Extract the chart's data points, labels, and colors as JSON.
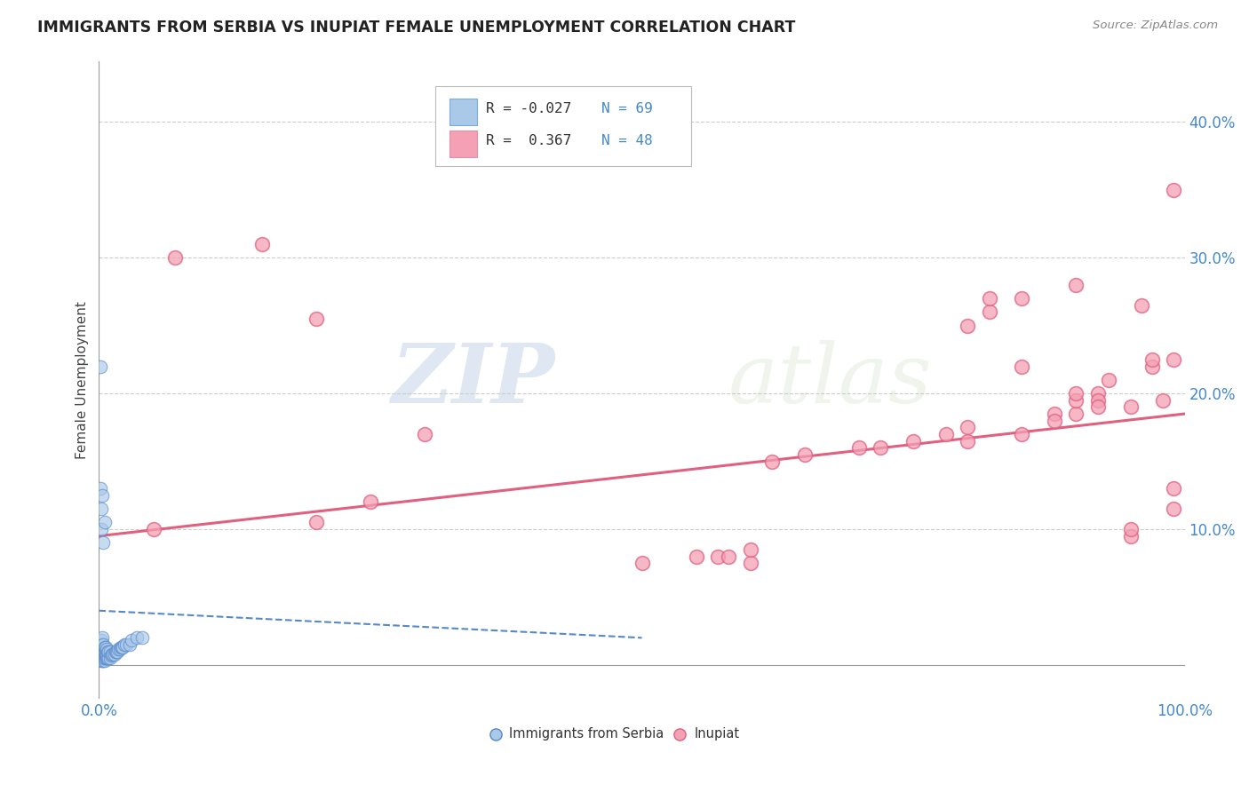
{
  "title": "IMMIGRANTS FROM SERBIA VS INUPIAT FEMALE UNEMPLOYMENT CORRELATION CHART",
  "source": "Source: ZipAtlas.com",
  "ylabel": "Female Unemployment",
  "yticks": [
    0.0,
    0.1,
    0.2,
    0.3,
    0.4
  ],
  "ytick_labels": [
    "",
    "10.0%",
    "20.0%",
    "30.0%",
    "40.0%"
  ],
  "xlim": [
    0.0,
    1.0
  ],
  "ylim": [
    -0.025,
    0.445
  ],
  "legend_r1": "R = -0.027",
  "legend_n1": "N = 69",
  "legend_r2": "R =  0.367",
  "legend_n2": "N = 48",
  "color_serbia": "#aac8e8",
  "color_serbia_line": "#5588cc",
  "color_inupiat": "#f4a0b5",
  "color_inupiat_line": "#e06080",
  "color_axis": "#4488cc",
  "watermark_zip": "ZIP",
  "watermark_atlas": "atlas",
  "serbia_x": [
    0.001,
    0.001,
    0.001,
    0.001,
    0.001,
    0.002,
    0.002,
    0.002,
    0.002,
    0.002,
    0.002,
    0.002,
    0.003,
    0.003,
    0.003,
    0.003,
    0.003,
    0.003,
    0.003,
    0.003,
    0.004,
    0.004,
    0.004,
    0.004,
    0.004,
    0.004,
    0.005,
    0.005,
    0.005,
    0.005,
    0.005,
    0.006,
    0.006,
    0.006,
    0.006,
    0.007,
    0.007,
    0.007,
    0.008,
    0.008,
    0.009,
    0.009,
    0.01,
    0.01,
    0.011,
    0.012,
    0.013,
    0.014,
    0.015,
    0.016,
    0.017,
    0.018,
    0.019,
    0.02,
    0.021,
    0.022,
    0.023,
    0.025,
    0.028,
    0.03,
    0.035,
    0.04,
    0.001,
    0.001,
    0.002,
    0.002,
    0.003,
    0.004,
    0.005
  ],
  "serbia_y": [
    0.005,
    0.008,
    0.01,
    0.012,
    0.015,
    0.003,
    0.005,
    0.007,
    0.01,
    0.012,
    0.015,
    0.018,
    0.003,
    0.005,
    0.007,
    0.008,
    0.01,
    0.012,
    0.015,
    0.02,
    0.003,
    0.005,
    0.007,
    0.01,
    0.012,
    0.015,
    0.003,
    0.005,
    0.008,
    0.01,
    0.013,
    0.005,
    0.007,
    0.01,
    0.013,
    0.005,
    0.008,
    0.012,
    0.005,
    0.01,
    0.005,
    0.01,
    0.005,
    0.01,
    0.007,
    0.008,
    0.008,
    0.008,
    0.01,
    0.01,
    0.01,
    0.012,
    0.012,
    0.013,
    0.013,
    0.013,
    0.015,
    0.015,
    0.015,
    0.018,
    0.02,
    0.02,
    0.13,
    0.22,
    0.1,
    0.115,
    0.125,
    0.09,
    0.105
  ],
  "inupiat_x": [
    0.05,
    0.07,
    0.15,
    0.2,
    0.2,
    0.25,
    0.3,
    0.5,
    0.55,
    0.57,
    0.58,
    0.6,
    0.6,
    0.62,
    0.65,
    0.7,
    0.72,
    0.75,
    0.78,
    0.8,
    0.8,
    0.82,
    0.85,
    0.85,
    0.88,
    0.9,
    0.9,
    0.9,
    0.92,
    0.92,
    0.93,
    0.95,
    0.95,
    0.96,
    0.97,
    0.97,
    0.98,
    0.99,
    0.99,
    0.99,
    0.8,
    0.82,
    0.85,
    0.88,
    0.9,
    0.92,
    0.95,
    0.99
  ],
  "inupiat_y": [
    0.1,
    0.3,
    0.31,
    0.255,
    0.105,
    0.12,
    0.17,
    0.075,
    0.08,
    0.08,
    0.08,
    0.075,
    0.085,
    0.15,
    0.155,
    0.16,
    0.16,
    0.165,
    0.17,
    0.165,
    0.25,
    0.26,
    0.17,
    0.27,
    0.185,
    0.185,
    0.195,
    0.28,
    0.2,
    0.195,
    0.21,
    0.095,
    0.19,
    0.265,
    0.22,
    0.225,
    0.195,
    0.115,
    0.225,
    0.35,
    0.175,
    0.27,
    0.22,
    0.18,
    0.2,
    0.19,
    0.1,
    0.13
  ],
  "serbia_trend_x": [
    0.0,
    0.5
  ],
  "serbia_trend_y": [
    0.04,
    0.02
  ],
  "inupiat_trend_x": [
    0.0,
    1.0
  ],
  "inupiat_trend_y": [
    0.095,
    0.185
  ]
}
